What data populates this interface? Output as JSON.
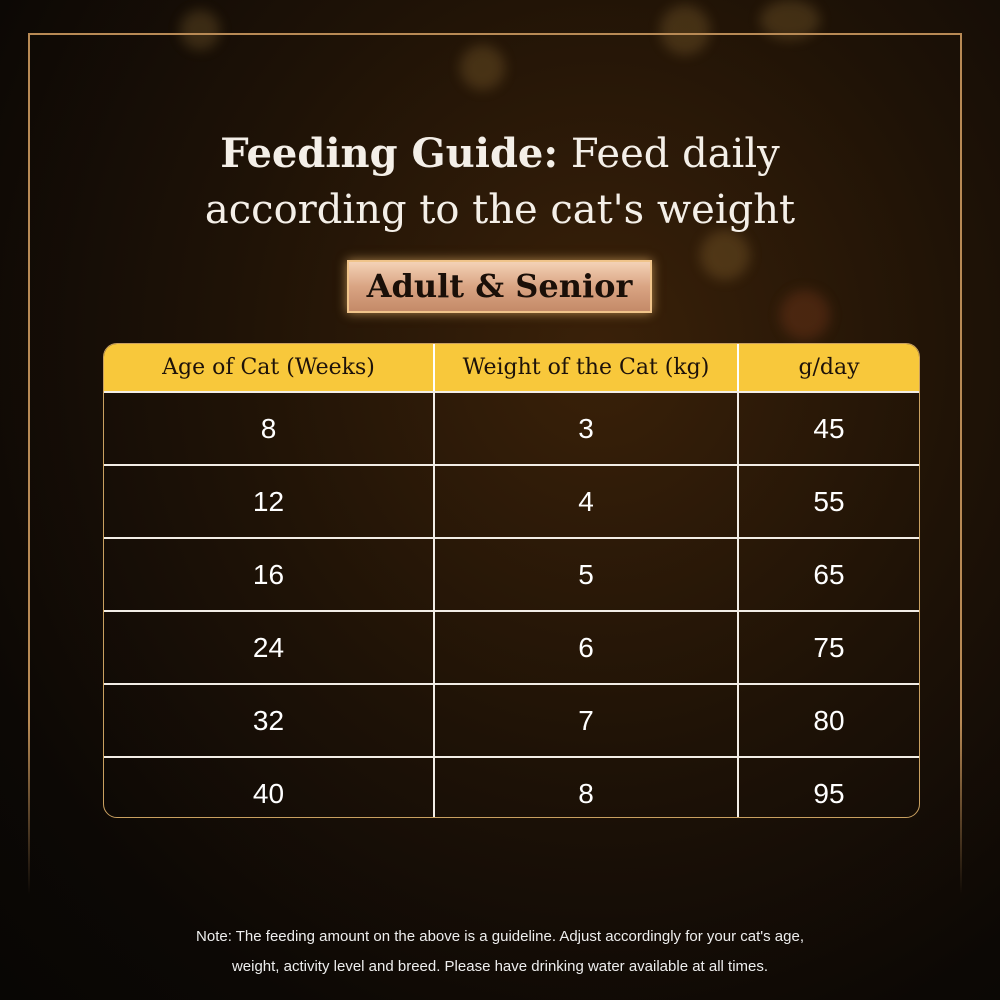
{
  "title": {
    "bold": "Feeding Guide:",
    "rest": " Feed daily",
    "line2": "according to the cat's weight"
  },
  "badge": "Adult & Senior",
  "table": {
    "headers": [
      "Age of Cat (Weeks)",
      "Weight of the Cat (kg)",
      "g/day"
    ],
    "rows": [
      [
        "8",
        "3",
        "45"
      ],
      [
        "12",
        "4",
        "55"
      ],
      [
        "16",
        "5",
        "65"
      ],
      [
        "24",
        "6",
        "75"
      ],
      [
        "32",
        "7",
        "80"
      ],
      [
        "40",
        "8",
        "95"
      ]
    ]
  },
  "note": {
    "line1": "Note: The feeding amount on the above is a guideline. Adjust accordingly for your cat's age,",
    "line2": "weight, activity level and breed. Please have drinking water available at all times."
  },
  "colors": {
    "header": "#f8c83b",
    "frame": "#b88a55",
    "badge": "#d9a483"
  }
}
